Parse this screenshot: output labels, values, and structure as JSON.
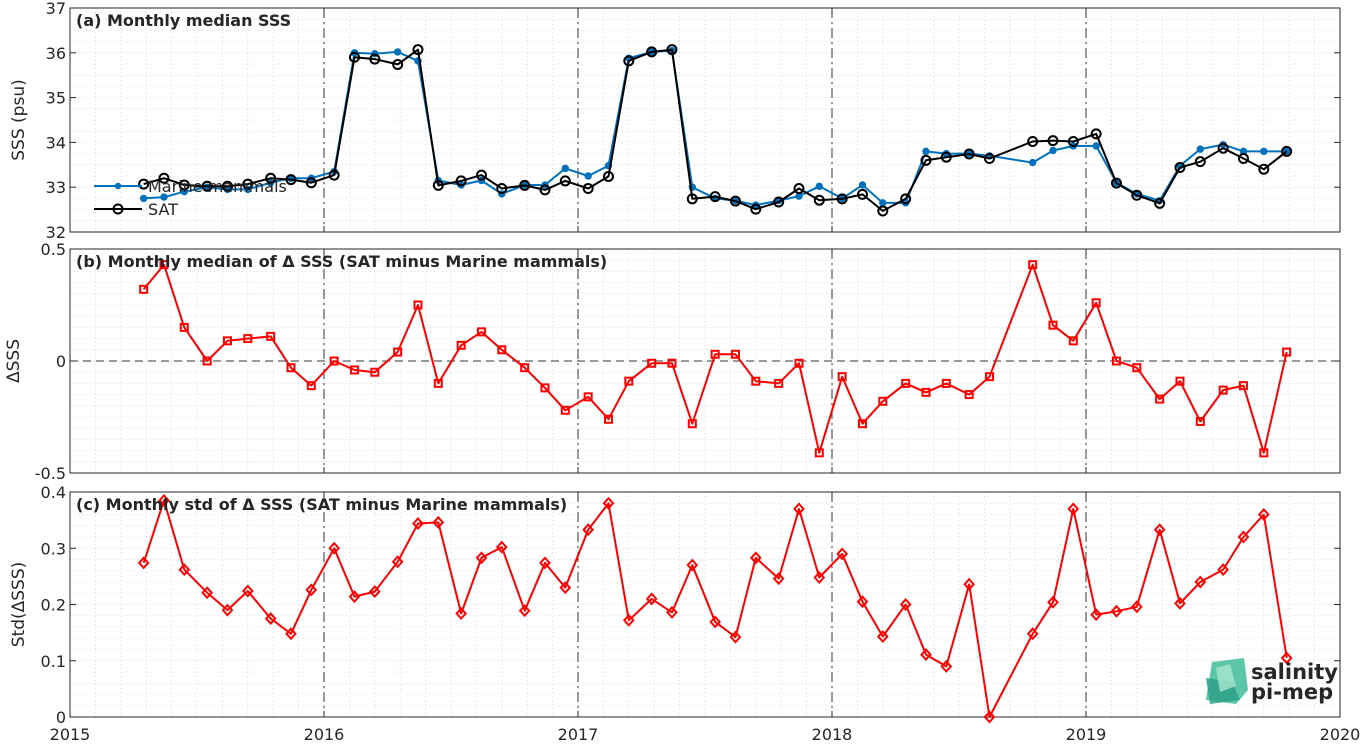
{
  "colors": {
    "marine": "#0072BD",
    "sat": "#000000",
    "diff": "#ff0000",
    "grid": "#d0d0d0",
    "vline": "#333333",
    "logo": "#1a9c8c"
  },
  "x_ticks": [
    "2015",
    "2016",
    "2017",
    "2018",
    "2019",
    "2020"
  ],
  "x_tick_values": [
    2015,
    2016,
    2017,
    2018,
    2019,
    2020
  ],
  "logo": {
    "line1": "salinity",
    "line2": "pi-mep"
  },
  "chart_data": [
    {
      "type": "line",
      "title": "(a) Monthly median SSS",
      "ylabel": "SSS (psu)",
      "ylim": [
        32,
        37
      ],
      "yticks": [
        32,
        33,
        34,
        35,
        36,
        37
      ],
      "xlim": [
        2015,
        2020
      ],
      "grid": true,
      "legend_position": "top-left",
      "legend": [
        "Marine mammals",
        "SAT"
      ],
      "series": [
        {
          "name": "Marine mammals",
          "marker": "dot",
          "x": [
            2015.29,
            2015.37,
            2015.45,
            2015.54,
            2015.62,
            2015.7,
            2015.79,
            2015.87,
            2015.95,
            2016.04,
            2016.12,
            2016.2,
            2016.29,
            2016.37,
            2016.45,
            2016.54,
            2016.62,
            2016.7,
            2016.79,
            2016.87,
            2016.95,
            2017.04,
            2017.12,
            2017.2,
            2017.29,
            2017.37,
            2017.45,
            2017.54,
            2017.62,
            2017.7,
            2017.79,
            2017.87,
            2017.95,
            2018.04,
            2018.12,
            2018.2,
            2018.29,
            2018.37,
            2018.45,
            2018.54,
            2018.62,
            2018.79,
            2018.87,
            2018.95,
            2019.04,
            2019.12,
            2019.2,
            2019.29,
            2019.37,
            2019.45,
            2019.54,
            2019.62,
            2019.7,
            2019.79
          ],
          "values": [
            32.75,
            32.78,
            32.9,
            33.0,
            32.95,
            32.95,
            33.1,
            33.2,
            33.2,
            33.35,
            36.0,
            35.98,
            36.02,
            35.82,
            33.15,
            33.05,
            33.15,
            32.85,
            33.05,
            33.05,
            33.42,
            33.25,
            33.48,
            35.88,
            36.02,
            36.05,
            33.0,
            32.75,
            32.7,
            32.6,
            32.7,
            32.8,
            33.02,
            32.75,
            33.05,
            32.65,
            32.65,
            33.8,
            33.75,
            33.75,
            33.7,
            33.55,
            33.82,
            33.92,
            33.92,
            33.1,
            32.85,
            32.7,
            33.48,
            33.85,
            33.95,
            33.8,
            33.8,
            33.8
          ]
        },
        {
          "name": "SAT",
          "marker": "circle",
          "x": [
            2015.29,
            2015.37,
            2015.45,
            2015.54,
            2015.62,
            2015.7,
            2015.79,
            2015.87,
            2015.95,
            2016.04,
            2016.12,
            2016.2,
            2016.29,
            2016.37,
            2016.45,
            2016.54,
            2016.62,
            2016.7,
            2016.79,
            2016.87,
            2016.95,
            2017.04,
            2017.12,
            2017.2,
            2017.29,
            2017.37,
            2017.45,
            2017.54,
            2017.62,
            2017.7,
            2017.79,
            2017.87,
            2017.95,
            2018.04,
            2018.12,
            2018.2,
            2018.29,
            2018.37,
            2018.45,
            2018.54,
            2018.62,
            2018.79,
            2018.87,
            2018.95,
            2019.04,
            2019.12,
            2019.2,
            2019.29,
            2019.37,
            2019.45,
            2019.54,
            2019.62,
            2019.7,
            2019.79
          ],
          "values": [
            33.07,
            33.2,
            33.05,
            33.02,
            33.02,
            33.07,
            33.2,
            33.17,
            33.1,
            33.27,
            35.9,
            35.86,
            35.74,
            36.07,
            33.04,
            33.14,
            33.27,
            32.97,
            33.04,
            32.94,
            33.14,
            32.97,
            33.24,
            35.82,
            36.02,
            36.07,
            32.74,
            32.79,
            32.69,
            32.51,
            32.67,
            32.97,
            32.71,
            32.74,
            32.84,
            32.47,
            32.74,
            33.6,
            33.67,
            33.74,
            33.64,
            34.02,
            34.04,
            34.02,
            34.19,
            33.09,
            32.82,
            32.64,
            33.44,
            33.57,
            33.87,
            33.64,
            33.4,
            33.8
          ]
        }
      ]
    },
    {
      "type": "line",
      "title": "(b) Monthly median of Δ SSS (SAT minus Marine mammals)",
      "ylabel": "ΔSSS",
      "ylim": [
        -0.5,
        0.5
      ],
      "yticks": [
        -0.5,
        0,
        0.5
      ],
      "ytick_labels": [
        "-0.5",
        "0",
        "0.5"
      ],
      "xlim": [
        2015,
        2020
      ],
      "grid": true,
      "zero_line": true,
      "series": [
        {
          "marker": "square",
          "x": [
            2015.29,
            2015.37,
            2015.45,
            2015.54,
            2015.62,
            2015.7,
            2015.79,
            2015.87,
            2015.95,
            2016.04,
            2016.12,
            2016.2,
            2016.29,
            2016.37,
            2016.45,
            2016.54,
            2016.62,
            2016.7,
            2016.79,
            2016.87,
            2016.95,
            2017.04,
            2017.12,
            2017.2,
            2017.29,
            2017.37,
            2017.45,
            2017.54,
            2017.62,
            2017.7,
            2017.79,
            2017.87,
            2017.95,
            2018.04,
            2018.12,
            2018.2,
            2018.29,
            2018.37,
            2018.45,
            2018.54,
            2018.62,
            2018.79,
            2018.87,
            2018.95,
            2019.04,
            2019.12,
            2019.2,
            2019.29,
            2019.37,
            2019.45,
            2019.54,
            2019.62,
            2019.7,
            2019.79
          ],
          "values": [
            0.32,
            0.43,
            0.15,
            0.0,
            0.09,
            0.1,
            0.11,
            -0.03,
            -0.11,
            0.0,
            -0.04,
            -0.05,
            0.04,
            0.25,
            -0.1,
            0.07,
            0.13,
            0.05,
            -0.03,
            -0.12,
            -0.22,
            -0.16,
            -0.26,
            -0.09,
            -0.01,
            -0.01,
            -0.28,
            0.03,
            0.03,
            -0.09,
            -0.1,
            -0.01,
            -0.41,
            -0.07,
            -0.28,
            -0.18,
            -0.1,
            -0.14,
            -0.1,
            -0.15,
            -0.07,
            0.43,
            0.16,
            0.09,
            0.26,
            0.0,
            -0.03,
            -0.17,
            -0.09,
            -0.27,
            -0.13,
            -0.11,
            -0.41,
            0.04
          ]
        }
      ]
    },
    {
      "type": "line",
      "title": "(c) Monthly std of Δ SSS (SAT minus Marine mammals)",
      "ylabel": "Std(ΔSSS)",
      "ylim": [
        0,
        0.4
      ],
      "yticks": [
        0,
        0.1,
        0.2,
        0.3,
        0.4
      ],
      "ytick_labels": [
        "0",
        "0.1",
        "0.2",
        "0.3",
        "0.4"
      ],
      "xlim": [
        2015,
        2020
      ],
      "grid": true,
      "series": [
        {
          "marker": "diamond",
          "x": [
            2015.29,
            2015.37,
            2015.45,
            2015.54,
            2015.62,
            2015.7,
            2015.79,
            2015.87,
            2015.95,
            2016.04,
            2016.12,
            2016.2,
            2016.29,
            2016.37,
            2016.45,
            2016.54,
            2016.62,
            2016.7,
            2016.79,
            2016.87,
            2016.95,
            2017.04,
            2017.12,
            2017.2,
            2017.29,
            2017.37,
            2017.45,
            2017.54,
            2017.62,
            2017.7,
            2017.79,
            2017.87,
            2017.95,
            2018.04,
            2018.12,
            2018.2,
            2018.29,
            2018.37,
            2018.45,
            2018.54,
            2018.62,
            2018.79,
            2018.87,
            2018.95,
            2019.04,
            2019.12,
            2019.2,
            2019.29,
            2019.37,
            2019.45,
            2019.54,
            2019.62,
            2019.7,
            2019.79
          ],
          "values": [
            0.274,
            0.385,
            0.262,
            0.221,
            0.19,
            0.224,
            0.175,
            0.148,
            0.226,
            0.3,
            0.214,
            0.223,
            0.276,
            0.344,
            0.346,
            0.184,
            0.283,
            0.302,
            0.189,
            0.274,
            0.23,
            0.333,
            0.38,
            0.172,
            0.21,
            0.186,
            0.27,
            0.169,
            0.142,
            0.283,
            0.246,
            0.37,
            0.248,
            0.29,
            0.205,
            0.143,
            0.2,
            0.111,
            0.09,
            0.236,
            0.0,
            0.148,
            0.204,
            0.37,
            0.182,
            0.188,
            0.196,
            0.333,
            0.202,
            0.24,
            0.262,
            0.32,
            0.36,
            0.105
          ]
        }
      ]
    }
  ]
}
